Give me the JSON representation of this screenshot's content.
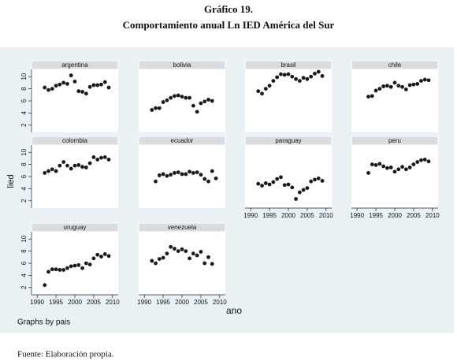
{
  "title": "Gráfico 19.",
  "subtitle": "Comportamiento anual Ln IED América del Sur",
  "source": "Fuente: Elaboración propia.",
  "chart_data": {
    "type": "scatter",
    "ylabel": "lied",
    "xlabel": "ano",
    "note": "Graphs by pais",
    "color": "#1a1a1a",
    "xlim": [
      1988.5,
      2011.5
    ],
    "ylim": [
      0.8,
      11.2
    ],
    "xticks": [
      1990,
      1995,
      2000,
      2005,
      2010
    ],
    "yticks": [
      2,
      4,
      6,
      8,
      10
    ],
    "panels": [
      {
        "title": "argentina",
        "x": [
          1992,
          1993,
          1994,
          1995,
          1996,
          1997,
          1998,
          1999,
          2000,
          2001,
          2002,
          2003,
          2004,
          2005,
          2006,
          2007,
          2008,
          2009
        ],
        "values": [
          8.2,
          7.8,
          8.0,
          8.5,
          8.7,
          9.0,
          8.8,
          10.2,
          9.2,
          7.6,
          7.5,
          7.2,
          8.3,
          8.6,
          8.6,
          8.7,
          9.1,
          8.2
        ]
      },
      {
        "title": "bolivia",
        "x": [
          1992,
          1993,
          1994,
          1995,
          1996,
          1997,
          1998,
          1999,
          2000,
          2001,
          2002,
          2003,
          2004,
          2005,
          2006,
          2007,
          2008
        ],
        "values": [
          4.5,
          4.8,
          4.8,
          5.8,
          6.1,
          6.5,
          6.8,
          6.9,
          6.7,
          6.5,
          6.5,
          5.2,
          4.2,
          5.6,
          5.9,
          6.2,
          6.0
        ]
      },
      {
        "title": "brasil",
        "x": [
          1992,
          1993,
          1994,
          1995,
          1996,
          1997,
          1998,
          1999,
          2000,
          2001,
          2002,
          2003,
          2004,
          2005,
          2006,
          2007,
          2008,
          2009
        ],
        "values": [
          7.6,
          7.2,
          8.0,
          8.5,
          9.3,
          9.9,
          10.4,
          10.3,
          10.4,
          10.0,
          9.6,
          9.3,
          9.8,
          9.6,
          10.0,
          10.5,
          10.8,
          10.1
        ]
      },
      {
        "title": "chile",
        "x": [
          1993,
          1994,
          1995,
          1996,
          1997,
          1998,
          1999,
          2000,
          2001,
          2002,
          2003,
          2004,
          2005,
          2006,
          2007,
          2008,
          2009
        ],
        "values": [
          6.7,
          6.8,
          7.7,
          8.0,
          8.4,
          8.5,
          8.3,
          9.0,
          8.5,
          8.3,
          7.9,
          8.6,
          8.7,
          8.8,
          9.3,
          9.5,
          9.4
        ]
      },
      {
        "title": "colombia",
        "x": [
          1992,
          1993,
          1994,
          1995,
          1996,
          1997,
          1998,
          1999,
          2000,
          2001,
          2002,
          2003,
          2004,
          2005,
          2006,
          2007,
          2008,
          2009
        ],
        "values": [
          6.6,
          6.9,
          7.2,
          6.9,
          7.8,
          8.4,
          7.8,
          7.3,
          7.8,
          7.9,
          7.6,
          7.5,
          8.2,
          9.2,
          8.8,
          9.1,
          9.2,
          8.8
        ]
      },
      {
        "title": "ecuador",
        "x": [
          1993,
          1994,
          1995,
          1996,
          1997,
          1998,
          1999,
          2000,
          2001,
          2002,
          2003,
          2004,
          2005,
          2006,
          2007,
          2008,
          2009
        ],
        "values": [
          5.2,
          6.2,
          6.4,
          6.1,
          6.3,
          6.6,
          6.7,
          6.4,
          6.4,
          6.8,
          6.6,
          6.7,
          6.3,
          5.6,
          5.2,
          6.9,
          5.7
        ]
      },
      {
        "title": "paraguay",
        "x": [
          1992,
          1993,
          1994,
          1995,
          1996,
          1997,
          1998,
          1999,
          2000,
          2001,
          2002,
          2003,
          2004,
          2005,
          2006,
          2007,
          2008,
          2009
        ],
        "values": [
          4.8,
          4.5,
          4.9,
          4.7,
          5.1,
          5.6,
          5.9,
          4.6,
          4.7,
          4.2,
          2.3,
          3.4,
          3.8,
          4.1,
          5.2,
          5.5,
          5.7,
          5.3
        ]
      },
      {
        "title": "peru",
        "x": [
          1993,
          1994,
          1995,
          1996,
          1997,
          1998,
          1999,
          2000,
          2001,
          2002,
          2003,
          2004,
          2005,
          2006,
          2007,
          2008,
          2009
        ],
        "values": [
          6.6,
          8.0,
          7.9,
          8.1,
          7.7,
          7.4,
          7.5,
          6.8,
          7.2,
          7.6,
          7.2,
          7.5,
          8.0,
          8.4,
          8.7,
          8.8,
          8.5
        ]
      },
      {
        "title": "uruguay",
        "x": [
          1992,
          1993,
          1994,
          1995,
          1996,
          1997,
          1998,
          1999,
          2000,
          2001,
          2002,
          2003,
          2004,
          2005,
          2006,
          2007,
          2008,
          2009
        ],
        "values": [
          2.4,
          4.6,
          5.0,
          5.0,
          4.9,
          4.9,
          5.2,
          5.5,
          5.6,
          5.7,
          5.2,
          6.0,
          5.8,
          6.8,
          7.4,
          7.1,
          7.5,
          7.2
        ]
      },
      {
        "title": "venezuela",
        "x": [
          1992,
          1993,
          1994,
          1995,
          1996,
          1997,
          1998,
          1999,
          2000,
          2001,
          2002,
          2003,
          2004,
          2005,
          2006,
          2007,
          2008
        ],
        "values": [
          6.4,
          6.0,
          6.7,
          6.9,
          7.6,
          8.7,
          8.4,
          8.0,
          8.3,
          8.0,
          6.8,
          7.6,
          7.3,
          7.9,
          6.0,
          7.0,
          5.9
        ]
      }
    ]
  }
}
